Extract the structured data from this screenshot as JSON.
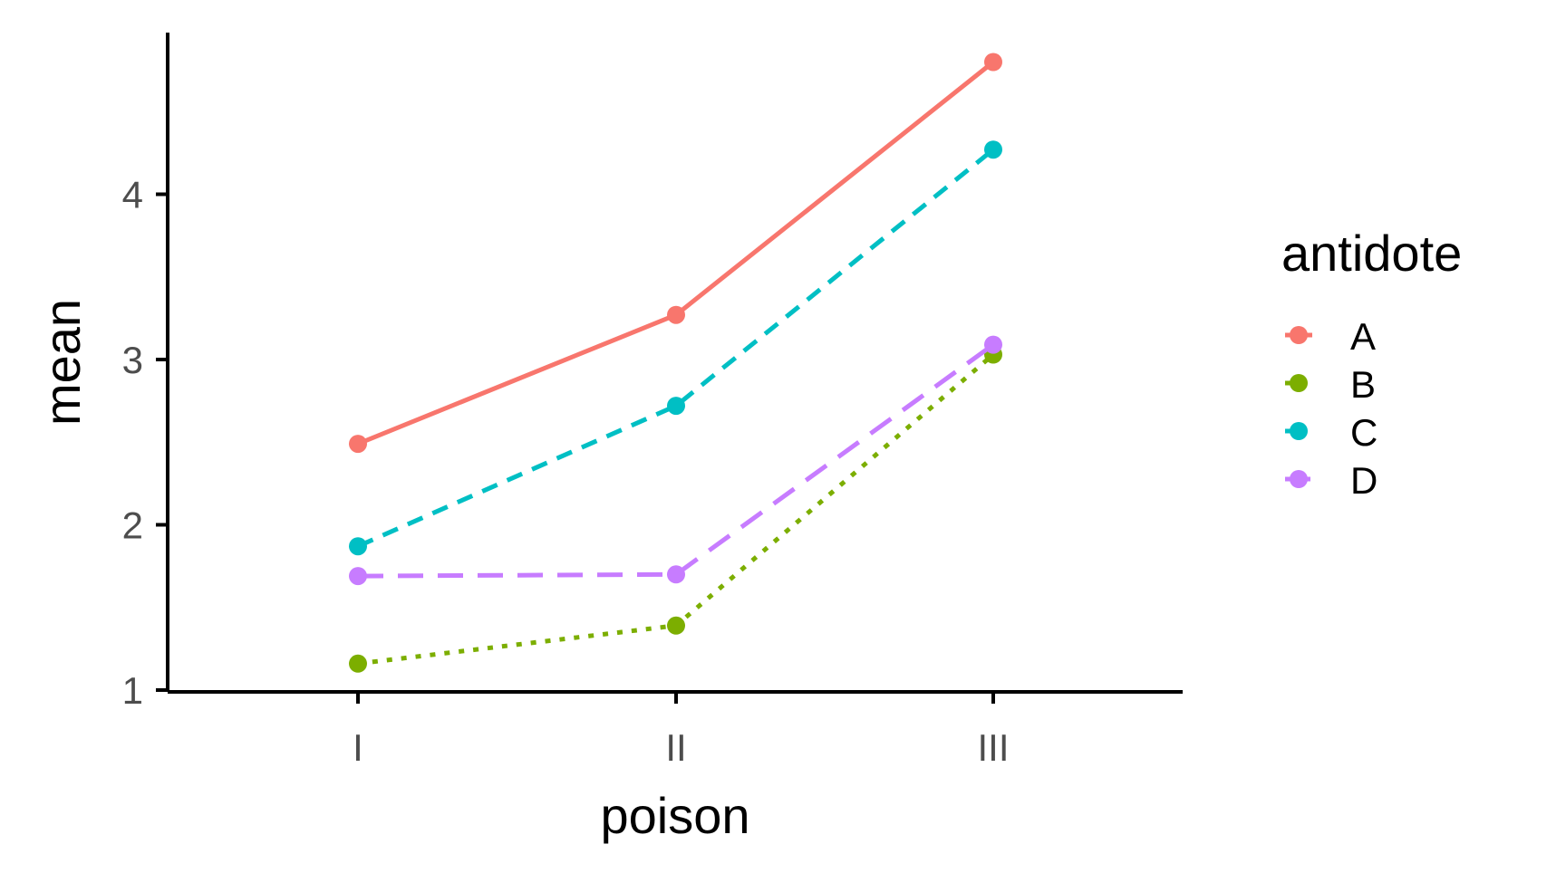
{
  "chart_data": {
    "type": "line",
    "title": "",
    "xlabel": "poison",
    "ylabel": "mean",
    "categories": [
      "I",
      "II",
      "III"
    ],
    "ylim": [
      1,
      5
    ],
    "yticks": [
      1,
      2,
      3,
      4
    ],
    "grid": false,
    "legend": {
      "title": "antidote",
      "position": "right"
    },
    "series": [
      {
        "name": "A",
        "values": [
          2.49,
          3.27,
          4.8
        ],
        "color": "#F8766D",
        "linestyle": "solid"
      },
      {
        "name": "B",
        "values": [
          1.16,
          1.39,
          3.03
        ],
        "color": "#7CAE00",
        "linestyle": "dotted"
      },
      {
        "name": "C",
        "values": [
          1.87,
          2.72,
          4.27
        ],
        "color": "#00BFC4",
        "linestyle": "dashed"
      },
      {
        "name": "D",
        "values": [
          1.69,
          1.7,
          3.09
        ],
        "color": "#C77CFF",
        "linestyle": "longdash"
      }
    ]
  }
}
